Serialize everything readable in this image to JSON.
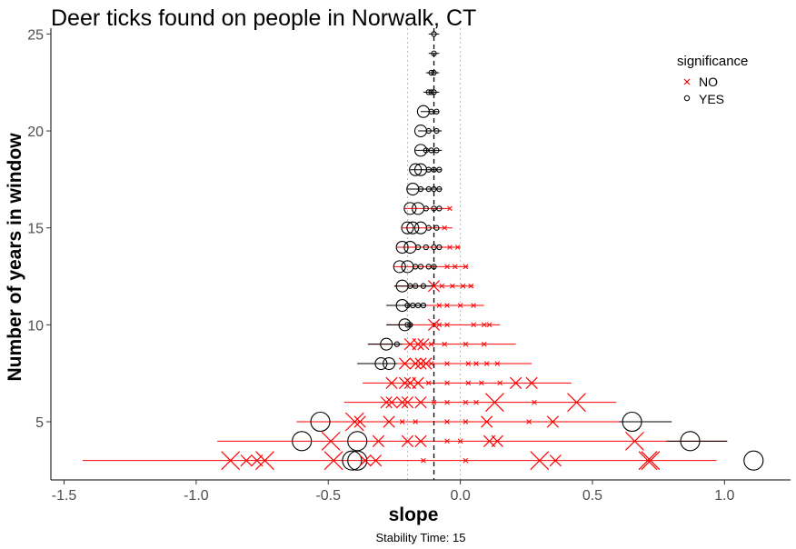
{
  "chart_data": {
    "type": "scatter",
    "title": "Deer ticks found on people in Norwalk, CT",
    "xlabel": "slope",
    "ylabel": "Number of years in window",
    "caption": "Stability Time: 15",
    "xlim": [
      -1.55,
      1.25
    ],
    "ylim": [
      2,
      25.3
    ],
    "xticks": [
      -1.5,
      -1.0,
      -0.5,
      0.0,
      0.5,
      1.0
    ],
    "xtick_labels": [
      "-1.5",
      "-1.0",
      "-0.5",
      "0.0",
      "0.5",
      "1.0"
    ],
    "yticks": [
      5,
      10,
      15,
      20,
      25
    ],
    "ytick_labels": [
      "5",
      "10",
      "15",
      "20",
      "25"
    ],
    "grid": false,
    "reference_lines": {
      "overall_slope": -0.1,
      "slope_band": [
        -0.2,
        0.0
      ]
    },
    "legend": {
      "title": "significance",
      "placement": "top-right",
      "entries": [
        "NO",
        "YES"
      ]
    },
    "colors": {
      "NO": "#ff0000",
      "YES": "#000000"
    },
    "series": [
      {
        "name": "YES",
        "points": [
          {
            "y": 25,
            "x": -0.1,
            "size": 1
          },
          {
            "y": 24,
            "x": -0.1,
            "size": 1
          },
          {
            "y": 23,
            "x": -0.1,
            "size": 1
          },
          {
            "y": 23,
            "x": -0.11,
            "size": 1
          },
          {
            "y": 22,
            "x": -0.1,
            "size": 1
          },
          {
            "y": 22,
            "x": -0.12,
            "size": 1
          },
          {
            "y": 22,
            "x": -0.11,
            "size": 1
          },
          {
            "y": 21,
            "x": -0.14,
            "size": 2
          },
          {
            "y": 21,
            "x": -0.11,
            "size": 1
          },
          {
            "y": 21,
            "x": -0.09,
            "size": 1
          },
          {
            "y": 20,
            "x": -0.15,
            "size": 2
          },
          {
            "y": 20,
            "x": -0.12,
            "size": 1
          },
          {
            "y": 20,
            "x": -0.09,
            "size": 1
          },
          {
            "y": 19,
            "x": -0.15,
            "size": 2
          },
          {
            "y": 19,
            "x": -0.13,
            "size": 1
          },
          {
            "y": 19,
            "x": -0.11,
            "size": 1
          },
          {
            "y": 19,
            "x": -0.09,
            "size": 1
          },
          {
            "y": 18,
            "x": -0.17,
            "size": 2
          },
          {
            "y": 18,
            "x": -0.15,
            "size": 2
          },
          {
            "y": 18,
            "x": -0.12,
            "size": 1
          },
          {
            "y": 18,
            "x": -0.1,
            "size": 1
          },
          {
            "y": 18,
            "x": -0.08,
            "size": 1
          },
          {
            "y": 17,
            "x": -0.18,
            "size": 2
          },
          {
            "y": 17,
            "x": -0.15,
            "size": 1
          },
          {
            "y": 17,
            "x": -0.12,
            "size": 1
          },
          {
            "y": 17,
            "x": -0.1,
            "size": 1
          },
          {
            "y": 17,
            "x": -0.08,
            "size": 1
          },
          {
            "y": 16,
            "x": -0.19,
            "size": 2
          },
          {
            "y": 16,
            "x": -0.16,
            "size": 2
          },
          {
            "y": 16,
            "x": -0.13,
            "size": 1
          },
          {
            "y": 16,
            "x": -0.1,
            "size": 1
          },
          {
            "y": 16,
            "x": -0.08,
            "size": 1
          },
          {
            "y": 15,
            "x": -0.2,
            "size": 2
          },
          {
            "y": 15,
            "x": -0.18,
            "size": 2
          },
          {
            "y": 15,
            "x": -0.15,
            "size": 2
          },
          {
            "y": 15,
            "x": -0.12,
            "size": 1
          },
          {
            "y": 15,
            "x": -0.09,
            "size": 1
          },
          {
            "y": 14,
            "x": -0.22,
            "size": 2
          },
          {
            "y": 14,
            "x": -0.19,
            "size": 2
          },
          {
            "y": 14,
            "x": -0.16,
            "size": 1
          },
          {
            "y": 14,
            "x": -0.13,
            "size": 1
          },
          {
            "y": 14,
            "x": -0.1,
            "size": 1
          },
          {
            "y": 14,
            "x": -0.08,
            "size": 1
          },
          {
            "y": 13,
            "x": -0.23,
            "size": 2
          },
          {
            "y": 13,
            "x": -0.2,
            "size": 2
          },
          {
            "y": 13,
            "x": -0.17,
            "size": 1
          },
          {
            "y": 13,
            "x": -0.15,
            "size": 1
          },
          {
            "y": 13,
            "x": -0.12,
            "size": 1
          },
          {
            "y": 13,
            "x": -0.1,
            "size": 1
          },
          {
            "y": 12,
            "x": -0.22,
            "size": 2
          },
          {
            "y": 12,
            "x": -0.19,
            "size": 1
          },
          {
            "y": 12,
            "x": -0.17,
            "size": 1
          },
          {
            "y": 12,
            "x": -0.14,
            "size": 1
          },
          {
            "y": 11,
            "x": -0.22,
            "size": 2
          },
          {
            "y": 11,
            "x": -0.2,
            "size": 1
          },
          {
            "y": 11,
            "x": -0.18,
            "size": 1
          },
          {
            "y": 11,
            "x": -0.16,
            "size": 1
          },
          {
            "y": 11,
            "x": -0.14,
            "size": 1
          },
          {
            "y": 10,
            "x": -0.21,
            "size": 2
          },
          {
            "y": 10,
            "x": -0.2,
            "size": 1
          },
          {
            "y": 10,
            "x": -0.19,
            "size": 1
          },
          {
            "y": 9,
            "x": -0.28,
            "size": 2
          },
          {
            "y": 9,
            "x": -0.24,
            "size": 1
          },
          {
            "y": 8,
            "x": -0.3,
            "size": 2
          },
          {
            "y": 8,
            "x": -0.27,
            "size": 2
          },
          {
            "y": 5,
            "x": -0.53,
            "size": 3
          },
          {
            "y": 5,
            "x": 0.65,
            "size": 3
          },
          {
            "y": 4,
            "x": -0.6,
            "size": 3
          },
          {
            "y": 4,
            "x": -0.39,
            "size": 3
          },
          {
            "y": 4,
            "x": 0.87,
            "size": 3
          },
          {
            "y": 3,
            "x": -0.41,
            "size": 3
          },
          {
            "y": 3,
            "x": -0.39,
            "size": 3
          },
          {
            "y": 3,
            "x": 1.11,
            "size": 3
          }
        ]
      },
      {
        "name": "NO",
        "points": [
          {
            "y": 16,
            "x": -0.04,
            "size": 1
          },
          {
            "y": 15,
            "x": -0.06,
            "size": 1
          },
          {
            "y": 14,
            "x": -0.04,
            "size": 1
          },
          {
            "y": 14,
            "x": -0.01,
            "size": 1
          },
          {
            "y": 13,
            "x": -0.05,
            "size": 1
          },
          {
            "y": 13,
            "x": -0.02,
            "size": 1
          },
          {
            "y": 13,
            "x": 0.02,
            "size": 1
          },
          {
            "y": 12,
            "x": -0.1,
            "size": 2
          },
          {
            "y": 12,
            "x": -0.07,
            "size": 1
          },
          {
            "y": 12,
            "x": -0.03,
            "size": 1
          },
          {
            "y": 12,
            "x": 0.01,
            "size": 1
          },
          {
            "y": 12,
            "x": 0.04,
            "size": 1
          },
          {
            "y": 11,
            "x": -0.08,
            "size": 1
          },
          {
            "y": 11,
            "x": -0.05,
            "size": 1
          },
          {
            "y": 11,
            "x": 0.0,
            "size": 1
          },
          {
            "y": 11,
            "x": 0.05,
            "size": 1
          },
          {
            "y": 10,
            "x": -0.1,
            "size": 2
          },
          {
            "y": 10,
            "x": -0.08,
            "size": 1
          },
          {
            "y": 10,
            "x": -0.05,
            "size": 1
          },
          {
            "y": 10,
            "x": 0.05,
            "size": 1
          },
          {
            "y": 10,
            "x": 0.09,
            "size": 1
          },
          {
            "y": 10,
            "x": 0.11,
            "size": 1
          },
          {
            "y": 9,
            "x": -0.19,
            "size": 2
          },
          {
            "y": 9,
            "x": -0.16,
            "size": 2
          },
          {
            "y": 9,
            "x": -0.14,
            "size": 2
          },
          {
            "y": 9,
            "x": -0.11,
            "size": 1
          },
          {
            "y": 9,
            "x": -0.06,
            "size": 1
          },
          {
            "y": 9,
            "x": 0.02,
            "size": 1
          },
          {
            "y": 9,
            "x": 0.09,
            "size": 1
          },
          {
            "y": 8,
            "x": -0.21,
            "size": 2
          },
          {
            "y": 8,
            "x": -0.17,
            "size": 2
          },
          {
            "y": 8,
            "x": -0.15,
            "size": 2
          },
          {
            "y": 8,
            "x": -0.13,
            "size": 2
          },
          {
            "y": 8,
            "x": -0.11,
            "size": 1
          },
          {
            "y": 8,
            "x": -0.05,
            "size": 1
          },
          {
            "y": 8,
            "x": 0.03,
            "size": 1
          },
          {
            "y": 8,
            "x": 0.06,
            "size": 1
          },
          {
            "y": 8,
            "x": 0.1,
            "size": 1
          },
          {
            "y": 8,
            "x": 0.14,
            "size": 1
          },
          {
            "y": 7,
            "x": -0.26,
            "size": 2
          },
          {
            "y": 7,
            "x": -0.21,
            "size": 2
          },
          {
            "y": 7,
            "x": -0.19,
            "size": 2
          },
          {
            "y": 7,
            "x": -0.16,
            "size": 2
          },
          {
            "y": 7,
            "x": -0.12,
            "size": 1
          },
          {
            "y": 7,
            "x": -0.05,
            "size": 1
          },
          {
            "y": 7,
            "x": 0.03,
            "size": 1
          },
          {
            "y": 7,
            "x": 0.08,
            "size": 1
          },
          {
            "y": 7,
            "x": 0.15,
            "size": 1
          },
          {
            "y": 7,
            "x": 0.21,
            "size": 2
          },
          {
            "y": 7,
            "x": 0.27,
            "size": 2
          },
          {
            "y": 6,
            "x": -0.28,
            "size": 2
          },
          {
            "y": 6,
            "x": -0.26,
            "size": 2
          },
          {
            "y": 6,
            "x": -0.22,
            "size": 2
          },
          {
            "y": 6,
            "x": -0.2,
            "size": 2
          },
          {
            "y": 6,
            "x": -0.15,
            "size": 2
          },
          {
            "y": 6,
            "x": -0.1,
            "size": 1
          },
          {
            "y": 6,
            "x": -0.05,
            "size": 1
          },
          {
            "y": 6,
            "x": 0.02,
            "size": 1
          },
          {
            "y": 6,
            "x": 0.06,
            "size": 1
          },
          {
            "y": 6,
            "x": 0.13,
            "size": 3
          },
          {
            "y": 6,
            "x": 0.28,
            "size": 1
          },
          {
            "y": 6,
            "x": 0.44,
            "size": 3
          },
          {
            "y": 5,
            "x": -0.4,
            "size": 3
          },
          {
            "y": 5,
            "x": -0.38,
            "size": 2
          },
          {
            "y": 5,
            "x": -0.27,
            "size": 2
          },
          {
            "y": 5,
            "x": -0.22,
            "size": 1
          },
          {
            "y": 5,
            "x": -0.17,
            "size": 1
          },
          {
            "y": 5,
            "x": -0.05,
            "size": 1
          },
          {
            "y": 5,
            "x": 0.02,
            "size": 1
          },
          {
            "y": 5,
            "x": 0.1,
            "size": 2
          },
          {
            "y": 5,
            "x": 0.26,
            "size": 1
          },
          {
            "y": 5,
            "x": 0.35,
            "size": 2
          },
          {
            "y": 4,
            "x": -0.49,
            "size": 3
          },
          {
            "y": 4,
            "x": -0.31,
            "size": 2
          },
          {
            "y": 4,
            "x": -0.2,
            "size": 2
          },
          {
            "y": 4,
            "x": -0.15,
            "size": 2
          },
          {
            "y": 4,
            "x": -0.05,
            "size": 1
          },
          {
            "y": 4,
            "x": 0.0,
            "size": 1
          },
          {
            "y": 4,
            "x": 0.11,
            "size": 2
          },
          {
            "y": 4,
            "x": 0.14,
            "size": 2
          },
          {
            "y": 4,
            "x": 0.66,
            "size": 3
          },
          {
            "y": 3,
            "x": -0.87,
            "size": 3
          },
          {
            "y": 3,
            "x": -0.81,
            "size": 2
          },
          {
            "y": 3,
            "x": -0.77,
            "size": 2
          },
          {
            "y": 3,
            "x": -0.74,
            "size": 3
          },
          {
            "y": 3,
            "x": -0.48,
            "size": 3
          },
          {
            "y": 3,
            "x": -0.36,
            "size": 2
          },
          {
            "y": 3,
            "x": -0.32,
            "size": 2
          },
          {
            "y": 3,
            "x": -0.14,
            "size": 1
          },
          {
            "y": 3,
            "x": 0.02,
            "size": 1
          },
          {
            "y": 3,
            "x": 0.3,
            "size": 3
          },
          {
            "y": 3,
            "x": 0.36,
            "size": 2
          },
          {
            "y": 3,
            "x": 0.71,
            "size": 3
          },
          {
            "y": 3,
            "x": 0.72,
            "size": 3
          }
        ]
      }
    ],
    "ranges": [
      {
        "y": 25,
        "xmin": -0.12,
        "xmax": -0.08,
        "color": "#000000"
      },
      {
        "y": 24,
        "xmin": -0.12,
        "xmax": -0.08,
        "color": "#000000"
      },
      {
        "y": 23,
        "xmin": -0.13,
        "xmax": -0.08,
        "color": "#000000"
      },
      {
        "y": 22,
        "xmin": -0.14,
        "xmax": -0.08,
        "color": "#000000"
      },
      {
        "y": 21,
        "xmin": -0.15,
        "xmax": -0.08,
        "color": "#000000"
      },
      {
        "y": 20,
        "xmin": -0.16,
        "xmax": -0.07,
        "color": "#000000"
      },
      {
        "y": 19,
        "xmin": -0.17,
        "xmax": -0.07,
        "color": "#000000"
      },
      {
        "y": 18,
        "xmin": -0.19,
        "xmax": -0.07,
        "color": "#000000"
      },
      {
        "y": 17,
        "xmin": -0.2,
        "xmax": -0.07,
        "color": "#000000"
      },
      {
        "y": 16,
        "xmin": -0.21,
        "xmax": -0.04,
        "color": "#ff0000"
      },
      {
        "y": 15,
        "xmin": -0.22,
        "xmax": -0.03,
        "color": "#ff0000"
      },
      {
        "y": 14,
        "xmin": -0.24,
        "xmax": 0.0,
        "color": "#ff0000"
      },
      {
        "y": 13,
        "xmin": -0.25,
        "xmax": 0.03,
        "color": "#ff0000"
      },
      {
        "y": 12,
        "xmin": -0.25,
        "xmax": 0.05,
        "color": "#ff0000"
      },
      {
        "y": 11,
        "xmin": -0.28,
        "xmax": 0.09,
        "color": "#ff0000"
      },
      {
        "y": 10,
        "xmin": -0.28,
        "xmax": 0.15,
        "color": "#ff0000"
      },
      {
        "y": 9,
        "xmin": -0.35,
        "xmax": 0.21,
        "color": "#ff0000"
      },
      {
        "y": 8,
        "xmin": -0.39,
        "xmax": 0.27,
        "color": "#ff0000"
      },
      {
        "y": 7,
        "xmin": -0.37,
        "xmax": 0.42,
        "color": "#ff0000"
      },
      {
        "y": 6,
        "xmin": -0.44,
        "xmax": 0.59,
        "color": "#ff0000"
      },
      {
        "y": 5,
        "xmin": -0.62,
        "xmax": 0.8,
        "color": "#ff0000"
      },
      {
        "y": 4,
        "xmin": -0.92,
        "xmax": 1.01,
        "color": "#ff0000"
      },
      {
        "y": 3,
        "xmin": -1.43,
        "xmax": 0.97,
        "color": "#ff0000"
      }
    ],
    "black_range_segments": [
      {
        "y": 12,
        "xmin": -0.25,
        "xmax": -0.1
      },
      {
        "y": 11,
        "xmin": -0.28,
        "xmax": -0.13
      },
      {
        "y": 10,
        "xmin": -0.28,
        "xmax": -0.18
      },
      {
        "y": 9,
        "xmin": -0.35,
        "xmax": -0.22
      },
      {
        "y": 8,
        "xmin": -0.39,
        "xmax": -0.24
      },
      {
        "y": 5,
        "xmin": 0.6,
        "xmax": 0.8
      },
      {
        "y": 4,
        "xmin": 0.78,
        "xmax": 1.01
      }
    ]
  }
}
